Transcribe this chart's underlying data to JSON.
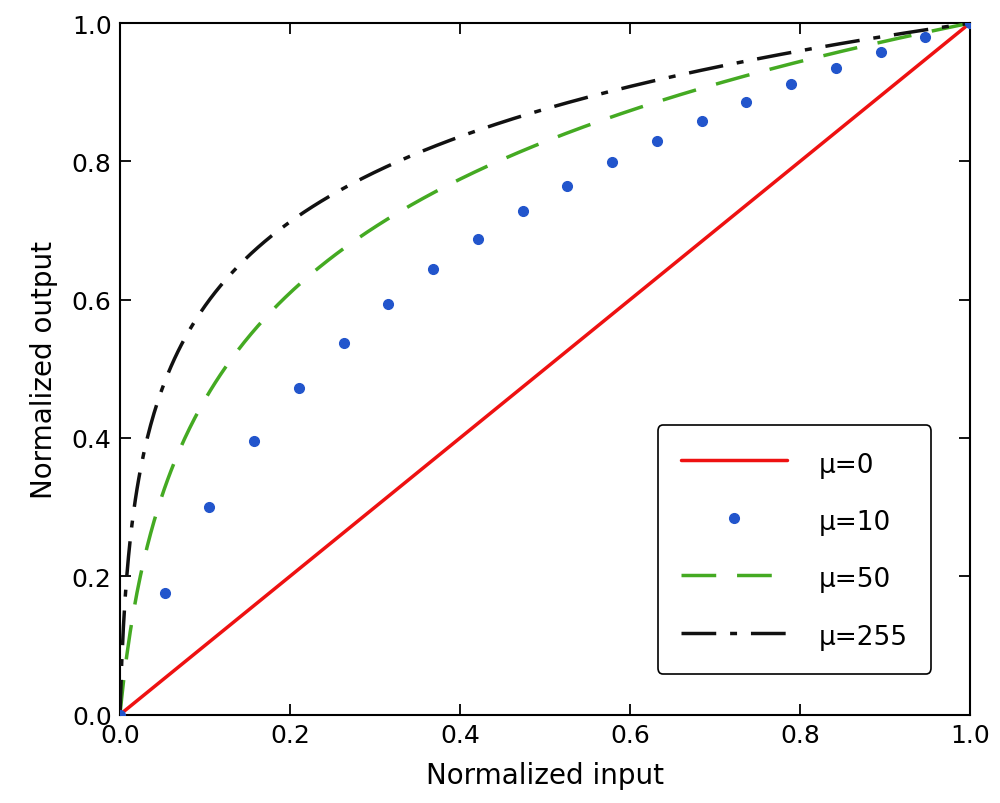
{
  "title": "",
  "xlabel": "Normalized input",
  "ylabel": "Normalized output",
  "xlim": [
    0,
    1
  ],
  "ylim": [
    0,
    1
  ],
  "mu_values": [
    0,
    10,
    50,
    255
  ],
  "colors": [
    "#ee1111",
    "#2255cc",
    "#44aa22",
    "#111111"
  ],
  "n_points_curve": 500,
  "n_points_dots": 20,
  "dot_size": 7,
  "dot_linewidth": 2.2,
  "green_linewidth": 2.5,
  "black_linewidth": 2.5,
  "red_linewidth": 2.5,
  "legend_labels": [
    "μ=0",
    "μ=10",
    "μ=50",
    "μ=255"
  ],
  "xlabel_fontsize": 20,
  "ylabel_fontsize": 20,
  "tick_fontsize": 18,
  "legend_fontsize": 19,
  "background_color": "#ffffff",
  "xticks": [
    0,
    0.2,
    0.4,
    0.6,
    0.8,
    1.0
  ],
  "yticks": [
    0,
    0.2,
    0.4,
    0.6,
    0.8,
    1.0
  ]
}
